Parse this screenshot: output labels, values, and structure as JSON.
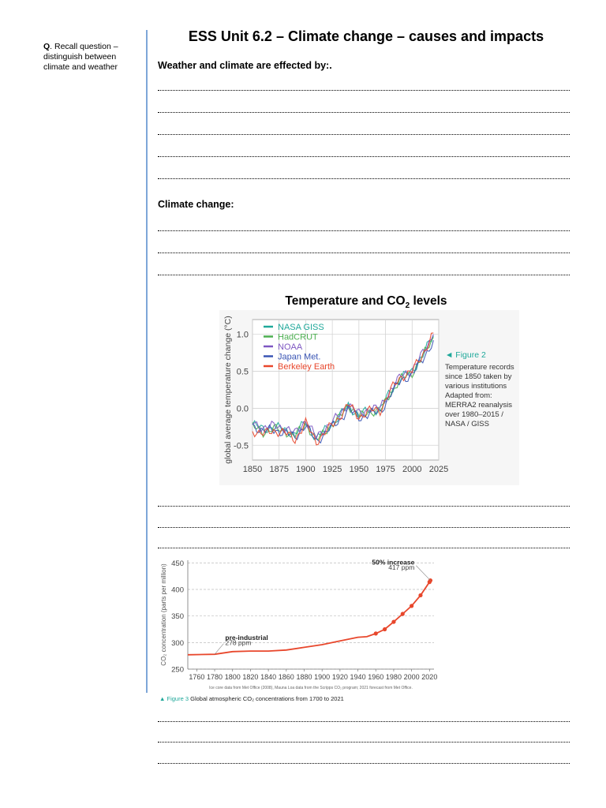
{
  "margin_note": {
    "q_label": "Q",
    "text": ". Recall question – distinguish between climate and weather"
  },
  "title": "ESS Unit 6.2 – Climate change – causes and impacts",
  "section1_heading": "Weather and climate are effected by:.",
  "section2_heading": "Climate change:",
  "figure_heading": {
    "text": "Temperature and CO",
    "sub": "2",
    "tail": " levels"
  },
  "chart_data": [
    {
      "type": "line",
      "ylabel": "global average temperature change (°C)",
      "xlim": [
        1850,
        2025
      ],
      "ylim": [
        -0.7,
        1.2
      ],
      "x_ticks": [
        1850,
        1875,
        1900,
        1925,
        1950,
        1975,
        2000,
        2025
      ],
      "y_ticks": [
        {
          "v": -0.5,
          "t": "-0.5"
        },
        {
          "v": 0,
          "t": "0.0"
        },
        {
          "v": 0.5,
          "t": "0.5"
        },
        {
          "v": 1.0,
          "t": "1.0"
        }
      ],
      "grid": true,
      "legend_position": "top-left",
      "x": [
        1850,
        1860,
        1870,
        1880,
        1890,
        1900,
        1910,
        1920,
        1930,
        1940,
        1950,
        1960,
        1970,
        1980,
        1990,
        2000,
        2010,
        2020
      ],
      "series": [
        {
          "name": "NASA GISS",
          "color": "#1fa89a",
          "values": [
            -0.22,
            -0.28,
            -0.26,
            -0.28,
            -0.36,
            -0.18,
            -0.42,
            -0.26,
            -0.14,
            0.04,
            -0.1,
            -0.02,
            -0.02,
            0.24,
            0.42,
            0.5,
            0.72,
            0.98
          ]
        },
        {
          "name": "HadCRUT",
          "color": "#4caf50",
          "values": [
            -0.25,
            -0.32,
            -0.28,
            -0.3,
            -0.38,
            -0.2,
            -0.44,
            -0.28,
            -0.16,
            0.05,
            -0.12,
            -0.04,
            -0.04,
            0.22,
            0.4,
            0.48,
            0.7,
            0.96
          ]
        },
        {
          "name": "NOAA",
          "color": "#7e57c2",
          "values": [
            -0.2,
            -0.26,
            -0.24,
            -0.26,
            -0.34,
            -0.16,
            -0.4,
            -0.24,
            -0.12,
            0.06,
            -0.08,
            0.0,
            0.0,
            0.26,
            0.44,
            0.52,
            0.74,
            1.0
          ]
        },
        {
          "name": "Japan Met.",
          "color": "#3a55b4",
          "values": [
            -0.24,
            -0.3,
            -0.3,
            -0.32,
            -0.4,
            -0.22,
            -0.46,
            -0.3,
            -0.2,
            0.0,
            -0.14,
            -0.06,
            -0.06,
            0.2,
            0.38,
            0.46,
            0.66,
            0.92
          ]
        },
        {
          "name": "Berkeley Earth",
          "color": "#e8472c",
          "values": [
            -0.3,
            -0.35,
            -0.3,
            -0.33,
            -0.42,
            -0.2,
            -0.45,
            -0.3,
            -0.15,
            0.05,
            -0.12,
            -0.03,
            -0.03,
            0.25,
            0.43,
            0.5,
            0.73,
            1.02
          ]
        }
      ],
      "caption": {
        "label": "◄ Figure 2",
        "lines": [
          "Temperature records",
          "since 1850 taken by",
          "various institutions",
          "Adapted from:",
          "MERRA2 reanalysis",
          "over 1980–2015 /",
          "NASA / GISS"
        ]
      }
    },
    {
      "type": "line",
      "ylabel": "CO₂ concentration (parts per million)",
      "xlim": [
        1750,
        2025
      ],
      "ylim": [
        250,
        455
      ],
      "x_ticks": [
        1760,
        1780,
        1800,
        1820,
        1840,
        1860,
        1880,
        1900,
        1920,
        1940,
        1960,
        1980,
        2000,
        2020
      ],
      "y_ticks": [
        250,
        300,
        350,
        400,
        450
      ],
      "grid": true,
      "x": [
        1750,
        1780,
        1800,
        1820,
        1840,
        1860,
        1880,
        1900,
        1920,
        1940,
        1950,
        1960,
        1970,
        1980,
        1990,
        2000,
        2010,
        2020,
        2021
      ],
      "series": [
        {
          "name": "",
          "color": "#e8472c",
          "values": [
            277,
            278,
            283,
            284,
            284,
            286,
            291,
            296,
            303,
            310,
            311,
            317,
            325,
            339,
            354,
            369,
            389,
            414,
            417
          ]
        }
      ],
      "annotations": [
        {
          "bold": "50% increase",
          "text": "417 ppm"
        },
        {
          "bold": "pre-industrial",
          "text": "278 ppm"
        }
      ],
      "source_note": "Ice core data from Met Office (2008), Mauna Loa data from the Scripps CO₂ program; 2021 forecast from Met Office.",
      "caption": {
        "label": "▲ Figure 3",
        "text": " Global atmospheric CO₂ concentrations from 1700 to 2021"
      }
    }
  ]
}
